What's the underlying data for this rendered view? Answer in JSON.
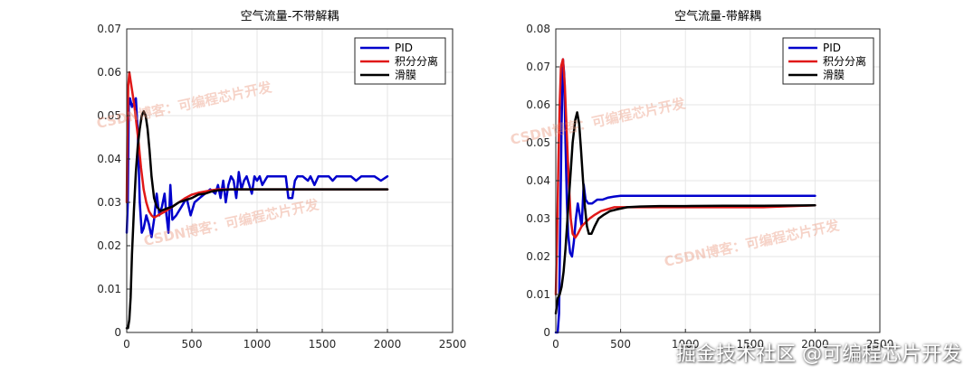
{
  "chart_data": [
    {
      "type": "line",
      "title": "空气流量-不带解耦",
      "xlim": [
        0,
        2500
      ],
      "ylim": [
        0,
        0.07
      ],
      "xticks": [
        "0",
        "500",
        "1000",
        "1500",
        "2000",
        "2500"
      ],
      "yticks": [
        "0",
        "0.01",
        "0.02",
        "0.03",
        "0.04",
        "0.05",
        "0.06",
        "0.07"
      ],
      "grid": true,
      "legend_position": "top-right",
      "series": [
        {
          "name": "PID",
          "color": "#0000cc",
          "points": [
            [
              0,
              0.023
            ],
            [
              8,
              0.03
            ],
            [
              15,
              0.052
            ],
            [
              25,
              0.054
            ],
            [
              40,
              0.052
            ],
            [
              55,
              0.053
            ],
            [
              70,
              0.054
            ],
            [
              85,
              0.046
            ],
            [
              100,
              0.03
            ],
            [
              115,
              0.023
            ],
            [
              130,
              0.024
            ],
            [
              150,
              0.027
            ],
            [
              170,
              0.025
            ],
            [
              190,
              0.022
            ],
            [
              210,
              0.026
            ],
            [
              230,
              0.032
            ],
            [
              250,
              0.027
            ],
            [
              270,
              0.029
            ],
            [
              290,
              0.032
            ],
            [
              305,
              0.027
            ],
            [
              320,
              0.023
            ],
            [
              335,
              0.034
            ],
            [
              350,
              0.026
            ],
            [
              380,
              0.027
            ],
            [
              420,
              0.029
            ],
            [
              460,
              0.031
            ],
            [
              490,
              0.027
            ],
            [
              520,
              0.03
            ],
            [
              560,
              0.031
            ],
            [
              600,
              0.032
            ],
            [
              640,
              0.033
            ],
            [
              680,
              0.032
            ],
            [
              700,
              0.034
            ],
            [
              720,
              0.031
            ],
            [
              740,
              0.035
            ],
            [
              760,
              0.03
            ],
            [
              780,
              0.034
            ],
            [
              800,
              0.036
            ],
            [
              820,
              0.035
            ],
            [
              840,
              0.031
            ],
            [
              860,
              0.037
            ],
            [
              880,
              0.033
            ],
            [
              900,
              0.035
            ],
            [
              920,
              0.036
            ],
            [
              940,
              0.034
            ],
            [
              960,
              0.032
            ],
            [
              980,
              0.036
            ],
            [
              1000,
              0.035
            ],
            [
              1020,
              0.036
            ],
            [
              1040,
              0.034
            ],
            [
              1060,
              0.035
            ],
            [
              1080,
              0.036
            ],
            [
              1100,
              0.036
            ],
            [
              1140,
              0.036
            ],
            [
              1180,
              0.036
            ],
            [
              1220,
              0.036
            ],
            [
              1240,
              0.031
            ],
            [
              1270,
              0.031
            ],
            [
              1290,
              0.035
            ],
            [
              1310,
              0.036
            ],
            [
              1350,
              0.036
            ],
            [
              1390,
              0.035
            ],
            [
              1410,
              0.036
            ],
            [
              1440,
              0.034
            ],
            [
              1470,
              0.036
            ],
            [
              1500,
              0.036
            ],
            [
              1550,
              0.036
            ],
            [
              1580,
              0.035
            ],
            [
              1610,
              0.036
            ],
            [
              1640,
              0.036
            ],
            [
              1680,
              0.036
            ],
            [
              1720,
              0.036
            ],
            [
              1760,
              0.035
            ],
            [
              1800,
              0.036
            ],
            [
              1850,
              0.036
            ],
            [
              1900,
              0.036
            ],
            [
              1950,
              0.035
            ],
            [
              2000,
              0.036
            ]
          ]
        },
        {
          "name": "积分分离",
          "color": "#e01818",
          "points": [
            [
              0,
              0.03
            ],
            [
              5,
              0.045
            ],
            [
              12,
              0.057
            ],
            [
              20,
              0.06
            ],
            [
              30,
              0.058
            ],
            [
              45,
              0.055
            ],
            [
              60,
              0.052
            ],
            [
              75,
              0.048
            ],
            [
              90,
              0.044
            ],
            [
              110,
              0.038
            ],
            [
              130,
              0.033
            ],
            [
              150,
              0.03
            ],
            [
              170,
              0.028
            ],
            [
              190,
              0.027
            ],
            [
              210,
              0.0265
            ],
            [
              240,
              0.027
            ],
            [
              270,
              0.0275
            ],
            [
              300,
              0.028
            ],
            [
              350,
              0.029
            ],
            [
              400,
              0.03
            ],
            [
              450,
              0.031
            ],
            [
              500,
              0.0318
            ],
            [
              550,
              0.0322
            ],
            [
              600,
              0.0325
            ],
            [
              650,
              0.0328
            ],
            [
              700,
              0.033
            ],
            [
              800,
              0.033
            ],
            [
              900,
              0.033
            ],
            [
              1000,
              0.033
            ],
            [
              1200,
              0.033
            ],
            [
              1400,
              0.033
            ],
            [
              1600,
              0.033
            ],
            [
              1800,
              0.033
            ],
            [
              2000,
              0.033
            ]
          ]
        },
        {
          "name": "滑膜",
          "color": "#000000",
          "points": [
            [
              0,
              0.001
            ],
            [
              10,
              0.001
            ],
            [
              20,
              0.003
            ],
            [
              30,
              0.008
            ],
            [
              40,
              0.018
            ],
            [
              55,
              0.028
            ],
            [
              70,
              0.037
            ],
            [
              85,
              0.043
            ],
            [
              100,
              0.047
            ],
            [
              115,
              0.05
            ],
            [
              130,
              0.051
            ],
            [
              145,
              0.05
            ],
            [
              160,
              0.047
            ],
            [
              175,
              0.042
            ],
            [
              190,
              0.036
            ],
            [
              210,
              0.031
            ],
            [
              230,
              0.029
            ],
            [
              260,
              0.028
            ],
            [
              300,
              0.0285
            ],
            [
              350,
              0.029
            ],
            [
              400,
              0.03
            ],
            [
              450,
              0.0305
            ],
            [
              500,
              0.031
            ],
            [
              550,
              0.0318
            ],
            [
              600,
              0.032
            ],
            [
              650,
              0.0325
            ],
            [
              700,
              0.0328
            ],
            [
              800,
              0.033
            ],
            [
              900,
              0.033
            ],
            [
              1000,
              0.033
            ],
            [
              1200,
              0.033
            ],
            [
              1400,
              0.033
            ],
            [
              1600,
              0.033
            ],
            [
              1800,
              0.033
            ],
            [
              2000,
              0.033
            ]
          ]
        }
      ]
    },
    {
      "type": "line",
      "title": "空气流量-带解耦",
      "xlim": [
        0,
        2500
      ],
      "ylim": [
        0,
        0.08
      ],
      "xticks": [
        "0",
        "500",
        "1000",
        "1500",
        "2000",
        "2500"
      ],
      "yticks": [
        "0",
        "0.01",
        "0.02",
        "0.03",
        "0.04",
        "0.05",
        "0.06",
        "0.07",
        "0.08"
      ],
      "grid": true,
      "legend_position": "top-right",
      "series": [
        {
          "name": "PID",
          "color": "#0000cc",
          "points": [
            [
              0,
              0.0
            ],
            [
              15,
              0.0
            ],
            [
              25,
              0.005
            ],
            [
              35,
              0.03
            ],
            [
              45,
              0.055
            ],
            [
              55,
              0.072
            ],
            [
              65,
              0.068
            ],
            [
              75,
              0.05
            ],
            [
              85,
              0.035
            ],
            [
              95,
              0.026
            ],
            [
              110,
              0.021
            ],
            [
              125,
              0.02
            ],
            [
              140,
              0.024
            ],
            [
              155,
              0.03
            ],
            [
              170,
              0.034
            ],
            [
              185,
              0.031
            ],
            [
              200,
              0.028
            ],
            [
              215,
              0.039
            ],
            [
              230,
              0.035
            ],
            [
              250,
              0.034
            ],
            [
              280,
              0.034
            ],
            [
              320,
              0.035
            ],
            [
              360,
              0.035
            ],
            [
              400,
              0.0355
            ],
            [
              450,
              0.0358
            ],
            [
              500,
              0.036
            ],
            [
              600,
              0.036
            ],
            [
              800,
              0.036
            ],
            [
              1000,
              0.036
            ],
            [
              1200,
              0.036
            ],
            [
              1400,
              0.036
            ],
            [
              1600,
              0.036
            ],
            [
              1800,
              0.036
            ],
            [
              2000,
              0.036
            ]
          ]
        },
        {
          "name": "积分分离",
          "color": "#e01818",
          "points": [
            [
              0,
              0.01
            ],
            [
              10,
              0.025
            ],
            [
              20,
              0.045
            ],
            [
              30,
              0.06
            ],
            [
              40,
              0.07
            ],
            [
              55,
              0.072
            ],
            [
              70,
              0.065
            ],
            [
              85,
              0.052
            ],
            [
              100,
              0.04
            ],
            [
              115,
              0.03
            ],
            [
              130,
              0.026
            ],
            [
              150,
              0.025
            ],
            [
              170,
              0.026
            ],
            [
              200,
              0.028
            ],
            [
              230,
              0.029
            ],
            [
              260,
              0.03
            ],
            [
              300,
              0.031
            ],
            [
              350,
              0.032
            ],
            [
              400,
              0.0325
            ],
            [
              450,
              0.033
            ],
            [
              500,
              0.033
            ],
            [
              700,
              0.033
            ],
            [
              1000,
              0.033
            ],
            [
              1300,
              0.033
            ],
            [
              1600,
              0.033
            ],
            [
              2000,
              0.0335
            ]
          ]
        },
        {
          "name": "滑膜",
          "color": "#000000",
          "points": [
            [
              0,
              0.005
            ],
            [
              15,
              0.009
            ],
            [
              30,
              0.01
            ],
            [
              45,
              0.012
            ],
            [
              60,
              0.016
            ],
            [
              75,
              0.022
            ],
            [
              90,
              0.03
            ],
            [
              110,
              0.04
            ],
            [
              130,
              0.05
            ],
            [
              150,
              0.056
            ],
            [
              165,
              0.058
            ],
            [
              180,
              0.055
            ],
            [
              195,
              0.048
            ],
            [
              210,
              0.04
            ],
            [
              225,
              0.033
            ],
            [
              240,
              0.028
            ],
            [
              255,
              0.026
            ],
            [
              275,
              0.026
            ],
            [
              300,
              0.028
            ],
            [
              330,
              0.03
            ],
            [
              370,
              0.031
            ],
            [
              420,
              0.032
            ],
            [
              480,
              0.0325
            ],
            [
              550,
              0.033
            ],
            [
              650,
              0.0332
            ],
            [
              800,
              0.0333
            ],
            [
              1000,
              0.0333
            ],
            [
              1300,
              0.0334
            ],
            [
              1600,
              0.0334
            ],
            [
              2000,
              0.0335
            ]
          ]
        }
      ]
    }
  ],
  "watermark": {
    "left_top": "CSDN博客：可编程芯片开发",
    "left_bottom": "CSDN博客：可编程芯片开发",
    "right_top": "CSDN博客：可编程芯片开发",
    "right_bottom": "CSDN博客：可编程芯片开发"
  },
  "footer_text": "掘金技术社区 @可编程芯片开发"
}
